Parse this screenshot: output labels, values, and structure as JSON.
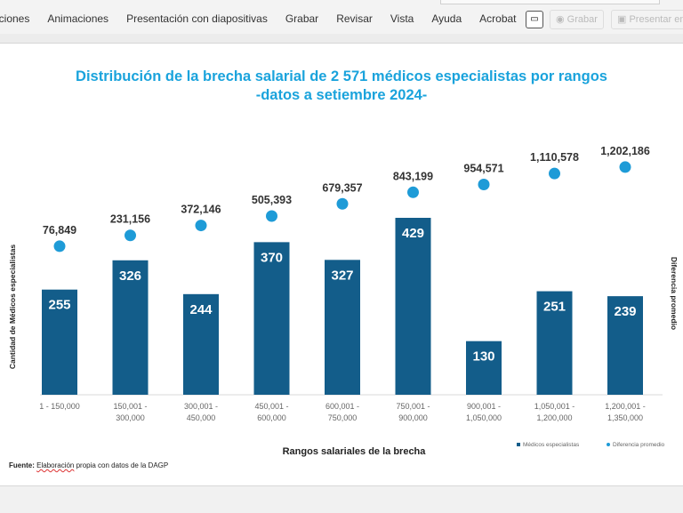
{
  "ribbon": {
    "menu": [
      "iciones",
      "Animaciones",
      "Presentación con diapositivas",
      "Grabar",
      "Revisar",
      "Vista",
      "Ayuda",
      "Acrobat"
    ],
    "record_button": "Grabar",
    "present_button": "Presentar en"
  },
  "source": {
    "label": "Fuente:",
    "text_underlined": "Elaboración",
    "text_rest": " propia con datos de la DAGP"
  },
  "chart_data": {
    "type": "bar",
    "title": "Distribución de la brecha salarial de  2 571 médicos especialistas por rangos",
    "subtitle": "-datos a setiembre 2024-",
    "xlabel": "Rangos salariales de la brecha",
    "ylabel": "Cantidad de Médicos especialistas",
    "y2label": "Diferencia promedio",
    "categories": [
      [
        "1 - 150,000"
      ],
      [
        "150,001 -",
        "300,000"
      ],
      [
        "300,001 -",
        "450,000"
      ],
      [
        "450,001 -",
        "600,000"
      ],
      [
        "600,001 -",
        "750,000"
      ],
      [
        "750,001 -",
        "900,000"
      ],
      [
        "900,001 -",
        "1,050,000"
      ],
      [
        "1,050,001 -",
        "1,200,000"
      ],
      [
        "1,200,001 -",
        "1,350,000"
      ]
    ],
    "series": [
      {
        "name": "Médicos especialistas",
        "type": "bar",
        "axis": "left",
        "color": "#135d8a",
        "values": [
          255,
          326,
          244,
          370,
          327,
          429,
          130,
          251,
          239
        ],
        "labels": [
          "255",
          "326",
          "244",
          "370",
          "327",
          "429",
          "130",
          "251",
          "239"
        ]
      },
      {
        "name": "Diferencia promedio",
        "type": "scatter",
        "axis": "right",
        "color": "#1e9bd7",
        "values": [
          76849,
          231156,
          372146,
          505393,
          679357,
          843199,
          954571,
          1110578,
          1202186
        ],
        "labels": [
          "76,849",
          "231,156",
          "372,146",
          "505,393",
          "679,357",
          "843,199",
          "954,571",
          "1,110,578",
          "1,202,186"
        ]
      }
    ],
    "legend": "bottom-right",
    "grid": false
  }
}
